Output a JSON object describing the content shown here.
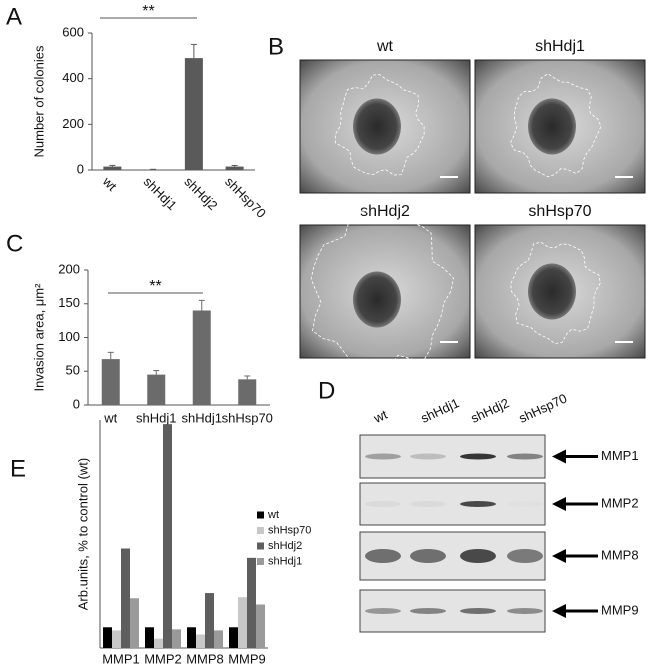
{
  "chart_data": [
    {
      "type": "bar",
      "panel": "A",
      "ylabel": "Number of colonies",
      "annotation": "**",
      "categories": [
        "wt",
        "shHdj1",
        "shHdj2",
        "shHsp70"
      ],
      "values": [
        15,
        2,
        490,
        15
      ],
      "errors": [
        5,
        1,
        60,
        5
      ],
      "color": "#5a5a5a",
      "ylim": [
        0,
        600
      ],
      "yticks": [
        0,
        200,
        400,
        600
      ]
    },
    {
      "type": "bar",
      "panel": "C",
      "ylabel": "Invasion area, μm²",
      "annotation": "**",
      "categories": [
        "wt",
        "shHdj1",
        "shHdj1",
        "shHsp70"
      ],
      "values": [
        68,
        45,
        140,
        38
      ],
      "errors": [
        10,
        6,
        15,
        5
      ],
      "color": "#6b6b6b",
      "ylim": [
        0,
        200
      ],
      "yticks": [
        0,
        50,
        100,
        150,
        200
      ]
    },
    {
      "type": "grouped-bar",
      "panel": "E",
      "ylabel": "Arb.units, % to control (wt)",
      "categories": [
        "MMP1",
        "MMP2",
        "MMP8",
        "MMP9"
      ],
      "ylim": [
        0,
        1100
      ],
      "series": [
        {
          "name": "wt",
          "color": "#000000",
          "values": [
            100,
            100,
            100,
            100
          ]
        },
        {
          "name": "shHsp70",
          "color": "#c8c8c8",
          "values": [
            85,
            45,
            65,
            245
          ]
        },
        {
          "name": "shHdj2",
          "color": "#5e5e5e",
          "values": [
            480,
            1080,
            265,
            435
          ]
        },
        {
          "name": "shHdj1",
          "color": "#9a9a9a",
          "values": [
            240,
            90,
            85,
            210
          ]
        }
      ]
    }
  ],
  "panel_b": {
    "panel": "B",
    "images": [
      "wt",
      "shHdj1",
      "shHdj2",
      "shHsp70"
    ]
  },
  "panel_d": {
    "panel": "D",
    "columns": [
      "wt",
      "shHdj1",
      "shHdj2",
      "shHsp70"
    ],
    "rows": [
      "MMP1",
      "MMP2",
      "MMP8",
      "MMP9"
    ]
  }
}
